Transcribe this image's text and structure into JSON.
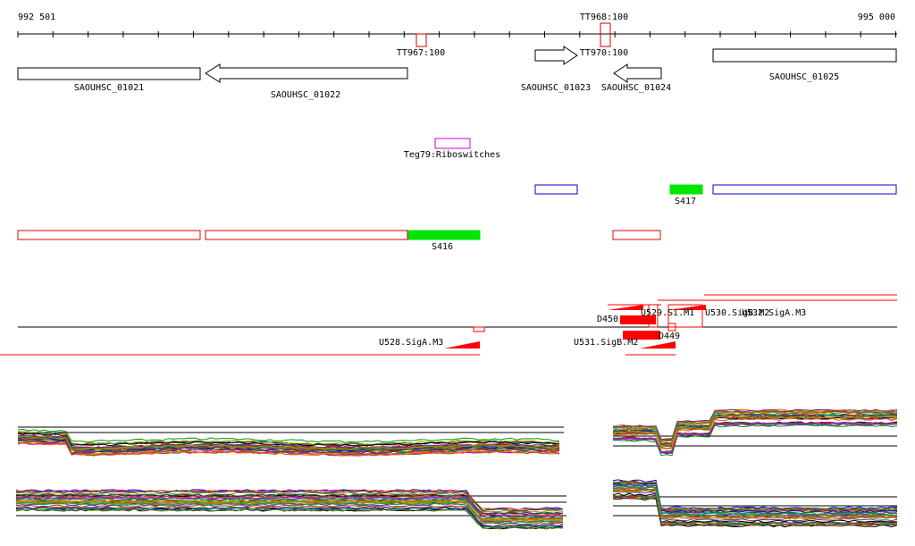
{
  "ruler": {
    "start_label": "992 501",
    "end_label": "995 000",
    "start": 992501,
    "end": 995000
  },
  "terminators": [
    {
      "id": "TT967",
      "label": "TT967:100"
    },
    {
      "id": "TT968",
      "label": "TT968:100"
    },
    {
      "id": "TT970",
      "label": "TT970:100"
    }
  ],
  "genes": [
    {
      "id": "g1021",
      "label": "SAOUHSC_01021",
      "strand": "-"
    },
    {
      "id": "g1022",
      "label": "SAOUHSC_01022",
      "strand": "-"
    },
    {
      "id": "g1023",
      "label": "SAOUHSC_01023",
      "strand": "+"
    },
    {
      "id": "g1024",
      "label": "SAOUHSC_01024",
      "strand": "-"
    },
    {
      "id": "g1025",
      "label": "SAOUHSC_01025",
      "strand": "+"
    }
  ],
  "riboswitch": {
    "label": "Teg79:Riboswitches"
  },
  "segments_plus": [
    {
      "id": "s417",
      "label": "S417"
    }
  ],
  "segments_minus": [
    {
      "id": "s416",
      "label": "S416"
    }
  ],
  "promoters": [
    {
      "id": "d450",
      "label": "D450"
    },
    {
      "id": "u529",
      "label": "U529.Si.M1"
    },
    {
      "id": "u530",
      "label": "U530.SigB.M2"
    },
    {
      "id": "u532",
      "label": "U532.SigA.M3"
    },
    {
      "id": "d449",
      "label": "D449"
    },
    {
      "id": "u528",
      "label": "U528.SigA.M3"
    },
    {
      "id": "u531",
      "label": "U531.SigB.M2"
    }
  ],
  "colors": {
    "gene_outline": "#000000",
    "riboswitch": "#cc00cc",
    "plus_segment": "#0000cc",
    "minus_segment": "#e60000",
    "highlight_segment": "#00e600",
    "terminator": "#cc0000",
    "promoter": "#ff0000"
  }
}
